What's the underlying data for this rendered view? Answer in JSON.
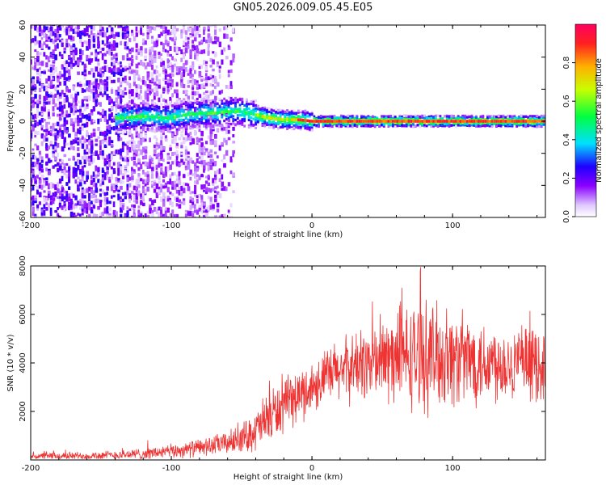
{
  "title": "GN05.2026.009.05.45.E05",
  "chart_data": [
    {
      "type": "heatmap",
      "name": "spectrogram",
      "xlabel": "Height of straight line (km)",
      "ylabel": "Frequency (Hz)",
      "xlim": [
        -200,
        166
      ],
      "ylim": [
        -60,
        60
      ],
      "xticks": [
        -200,
        -100,
        0,
        100
      ],
      "yticks": [
        -60,
        -40,
        -20,
        0,
        20,
        40,
        60
      ],
      "xtick_labels": [
        "-200",
        "-100",
        "0",
        "100"
      ],
      "ytick_labels": [
        "-60",
        "-40",
        "-20",
        "0",
        "20",
        "40",
        "60"
      ],
      "ridge": {
        "x": [
          -135,
          -120,
          -100,
          -90,
          -80,
          -70,
          -60,
          -50,
          -40,
          -30,
          -20,
          -10,
          0,
          20,
          50,
          100,
          166
        ],
        "y": [
          2,
          3,
          2,
          4,
          5,
          5,
          6,
          6,
          4,
          2,
          1,
          1,
          0,
          0,
          0,
          0,
          0
        ]
      },
      "colorbar": {
        "label": "Normalized spectral amplitude",
        "ticks": [
          0.0,
          0.2,
          0.4,
          0.6,
          0.8
        ],
        "tick_labels": [
          "0.0",
          "0.2",
          "0.4",
          "0.6",
          "0.8"
        ],
        "range": [
          0,
          1
        ]
      }
    },
    {
      "type": "line",
      "name": "snr",
      "xlabel": "Height of straight line (km)",
      "ylabel": "SNR (10 * v/v)",
      "xlim": [
        -200,
        166
      ],
      "ylim": [
        0,
        8000
      ],
      "xticks": [
        -200,
        -100,
        0,
        100
      ],
      "yticks": [
        2000,
        4000,
        6000,
        8000
      ],
      "xtick_labels": [
        "-200",
        "-100",
        "0",
        "100"
      ],
      "ytick_labels": [
        "2000",
        "4000",
        "6000",
        "8000"
      ],
      "color": "#ee3333",
      "envelope": {
        "x": [
          -200,
          -150,
          -120,
          -100,
          -80,
          -60,
          -50,
          -40,
          -35,
          -30,
          -20,
          -10,
          0,
          10,
          20,
          40,
          60,
          80,
          100,
          120,
          140,
          166
        ],
        "mean": [
          150,
          180,
          250,
          350,
          500,
          700,
          900,
          1200,
          1500,
          1800,
          2200,
          2600,
          3000,
          3400,
          3700,
          4000,
          4200,
          4300,
          4200,
          4100,
          4000,
          3900
        ],
        "spread": [
          120,
          150,
          200,
          250,
          300,
          400,
          500,
          700,
          900,
          1000,
          900,
          900,
          900,
          1000,
          1100,
          1300,
          1700,
          1900,
          1700,
          1500,
          1300,
          1200
        ]
      }
    }
  ]
}
